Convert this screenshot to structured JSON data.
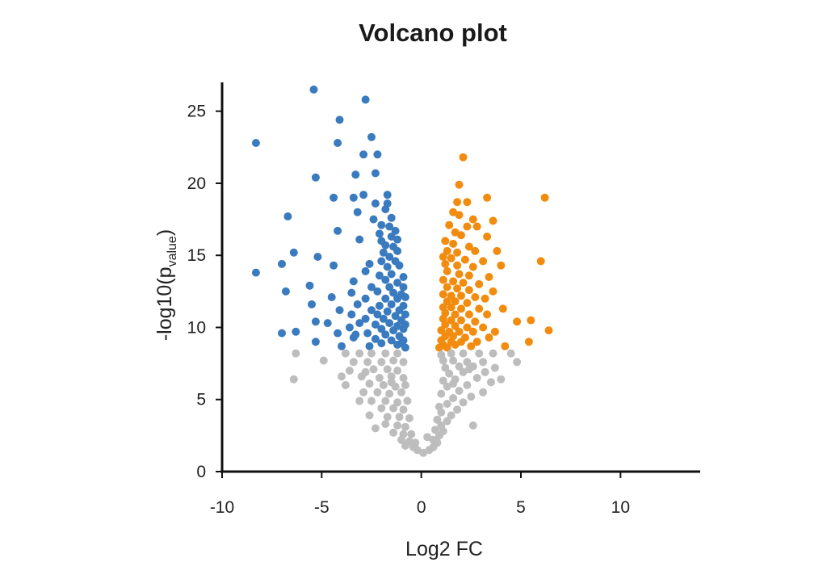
{
  "chart_data": {
    "type": "scatter",
    "title": "Volcano plot",
    "xlabel": "Log2 FC",
    "ylabel_main": "-log10(p",
    "ylabel_sub": "value",
    "ylabel_close": ")",
    "xlim": [
      -10,
      14
    ],
    "ylim": [
      0,
      27
    ],
    "xticks": [
      -10,
      -5,
      0,
      5,
      10
    ],
    "yticks": [
      0,
      5,
      10,
      15,
      20,
      25
    ],
    "grid": false,
    "colors": {
      "down": "#3a7bbf",
      "up": "#f28c0f",
      "ns": "#bdbdbd"
    },
    "series": [
      {
        "key": "down",
        "points": [
          [
            -5.4,
            26.5
          ],
          [
            -2.8,
            25.8
          ],
          [
            -4.1,
            24.4
          ],
          [
            -2.5,
            23.2
          ],
          [
            -8.3,
            22.8
          ],
          [
            -4.2,
            22.8
          ],
          [
            -2.9,
            22.0
          ],
          [
            -2.2,
            22.0
          ],
          [
            -5.3,
            20.4
          ],
          [
            -3.3,
            20.6
          ],
          [
            -2.3,
            20.7
          ],
          [
            -4.4,
            19.0
          ],
          [
            -3.4,
            19.0
          ],
          [
            -2.9,
            19.2
          ],
          [
            -1.7,
            19.2
          ],
          [
            -2.3,
            18.6
          ],
          [
            -1.7,
            18.6
          ],
          [
            -3.2,
            18.0
          ],
          [
            -1.8,
            18.2
          ],
          [
            -6.7,
            17.7
          ],
          [
            -2.4,
            17.5
          ],
          [
            -1.5,
            17.6
          ],
          [
            -2.0,
            17.1
          ],
          [
            -1.6,
            17.0
          ],
          [
            -1.3,
            16.7
          ],
          [
            -4.2,
            16.7
          ],
          [
            -2.1,
            16.5
          ],
          [
            -1.5,
            16.3
          ],
          [
            -3.1,
            16.1
          ],
          [
            -2.0,
            16.0
          ],
          [
            -1.2,
            16.1
          ],
          [
            -1.8,
            15.7
          ],
          [
            -1.4,
            15.6
          ],
          [
            -6.4,
            15.2
          ],
          [
            -1.9,
            15.2
          ],
          [
            -1.2,
            15.3
          ],
          [
            -5.2,
            14.9
          ],
          [
            -1.6,
            14.9
          ],
          [
            -2.0,
            14.6
          ],
          [
            -7.0,
            14.4
          ],
          [
            -1.3,
            14.6
          ],
          [
            -4.4,
            14.3
          ],
          [
            -2.6,
            14.4
          ],
          [
            -1.7,
            14.2
          ],
          [
            -1.1,
            14.3
          ],
          [
            -8.3,
            13.8
          ],
          [
            -2.8,
            13.9
          ],
          [
            -2.1,
            13.6
          ],
          [
            -1.5,
            13.7
          ],
          [
            -0.9,
            13.5
          ],
          [
            -3.4,
            13.2
          ],
          [
            -1.8,
            13.3
          ],
          [
            -1.2,
            13.1
          ],
          [
            -5.6,
            12.9
          ],
          [
            -2.5,
            12.8
          ],
          [
            -1.6,
            12.8
          ],
          [
            -0.9,
            12.8
          ],
          [
            -6.8,
            12.5
          ],
          [
            -3.5,
            12.4
          ],
          [
            -2.2,
            12.5
          ],
          [
            -1.4,
            12.4
          ],
          [
            -1.0,
            12.3
          ],
          [
            -4.5,
            12.1
          ],
          [
            -2.8,
            12.0
          ],
          [
            -1.8,
            12.0
          ],
          [
            -1.2,
            12.0
          ],
          [
            -0.8,
            12.1
          ],
          [
            -5.5,
            11.6
          ],
          [
            -3.2,
            11.6
          ],
          [
            -2.1,
            11.5
          ],
          [
            -1.5,
            11.6
          ],
          [
            -0.9,
            11.5
          ],
          [
            -4.1,
            11.2
          ],
          [
            -2.5,
            11.2
          ],
          [
            -1.7,
            11.1
          ],
          [
            -1.1,
            11.2
          ],
          [
            -3.5,
            10.9
          ],
          [
            -2.2,
            10.9
          ],
          [
            -1.3,
            10.8
          ],
          [
            -0.8,
            10.9
          ],
          [
            -2.8,
            10.6
          ],
          [
            -1.9,
            10.6
          ],
          [
            -1.0,
            10.5
          ],
          [
            -5.3,
            10.4
          ],
          [
            -4.7,
            10.3
          ],
          [
            -3.1,
            10.3
          ],
          [
            -2.3,
            10.2
          ],
          [
            -1.6,
            10.3
          ],
          [
            -1.2,
            10.1
          ],
          [
            -0.8,
            10.2
          ],
          [
            -3.6,
            10.0
          ],
          [
            -2.0,
            9.9
          ],
          [
            -1.4,
            9.8
          ],
          [
            -0.9,
            9.9
          ],
          [
            -7.0,
            9.6
          ],
          [
            -6.3,
            9.7
          ],
          [
            -4.2,
            9.6
          ],
          [
            -2.7,
            9.6
          ],
          [
            -1.8,
            9.5
          ],
          [
            -1.1,
            9.4
          ],
          [
            -3.4,
            9.3
          ],
          [
            -2.3,
            9.2
          ],
          [
            -1.5,
            9.1
          ],
          [
            -0.9,
            9.1
          ],
          [
            -5.3,
            9.0
          ],
          [
            -2.0,
            8.9
          ],
          [
            -1.2,
            8.8
          ],
          [
            -4.0,
            8.7
          ],
          [
            -2.6,
            8.7
          ],
          [
            -0.8,
            8.6
          ],
          [
            -3.3,
            9.5
          ],
          [
            -1.0,
            8.9
          ]
        ]
      },
      {
        "key": "up",
        "points": [
          [
            2.1,
            21.8
          ],
          [
            1.9,
            19.9
          ],
          [
            3.3,
            19.0
          ],
          [
            6.2,
            19.0
          ],
          [
            1.8,
            18.7
          ],
          [
            2.3,
            18.7
          ],
          [
            1.6,
            18.0
          ],
          [
            1.9,
            17.8
          ],
          [
            2.6,
            17.5
          ],
          [
            3.6,
            17.4
          ],
          [
            1.4,
            17.1
          ],
          [
            2.3,
            17.0
          ],
          [
            2.8,
            17.0
          ],
          [
            1.7,
            16.6
          ],
          [
            2.0,
            16.4
          ],
          [
            3.3,
            16.3
          ],
          [
            1.2,
            16.0
          ],
          [
            1.6,
            15.8
          ],
          [
            2.4,
            15.6
          ],
          [
            1.3,
            15.3
          ],
          [
            1.8,
            15.2
          ],
          [
            2.7,
            15.3
          ],
          [
            3.8,
            15.3
          ],
          [
            1.1,
            14.9
          ],
          [
            1.5,
            14.8
          ],
          [
            2.2,
            14.7
          ],
          [
            3.1,
            14.6
          ],
          [
            6.0,
            14.6
          ],
          [
            1.2,
            14.4
          ],
          [
            1.8,
            14.3
          ],
          [
            2.6,
            14.2
          ],
          [
            4.0,
            14.3
          ],
          [
            1.3,
            13.9
          ],
          [
            1.9,
            13.7
          ],
          [
            2.4,
            13.6
          ],
          [
            3.4,
            13.5
          ],
          [
            1.1,
            13.3
          ],
          [
            1.6,
            13.2
          ],
          [
            2.1,
            13.1
          ],
          [
            2.9,
            13.0
          ],
          [
            1.3,
            12.8
          ],
          [
            1.8,
            12.7
          ],
          [
            2.4,
            12.6
          ],
          [
            3.6,
            12.5
          ],
          [
            1.1,
            12.3
          ],
          [
            1.5,
            12.2
          ],
          [
            2.0,
            12.2
          ],
          [
            2.7,
            12.1
          ],
          [
            3.2,
            12.0
          ],
          [
            1.3,
            11.8
          ],
          [
            1.7,
            11.8
          ],
          [
            2.3,
            11.7
          ],
          [
            1.1,
            11.4
          ],
          [
            1.5,
            11.4
          ],
          [
            2.0,
            11.3
          ],
          [
            2.9,
            11.3
          ],
          [
            4.1,
            11.3
          ],
          [
            1.2,
            11.0
          ],
          [
            1.7,
            10.9
          ],
          [
            2.4,
            10.9
          ],
          [
            3.3,
            10.9
          ],
          [
            1.1,
            10.6
          ],
          [
            1.5,
            10.5
          ],
          [
            2.0,
            10.5
          ],
          [
            2.7,
            10.4
          ],
          [
            4.8,
            10.4
          ],
          [
            5.5,
            10.5
          ],
          [
            1.2,
            10.2
          ],
          [
            1.7,
            10.1
          ],
          [
            2.3,
            10.0
          ],
          [
            3.1,
            10.0
          ],
          [
            1.0,
            9.8
          ],
          [
            1.4,
            9.7
          ],
          [
            1.9,
            9.7
          ],
          [
            2.6,
            9.7
          ],
          [
            3.7,
            9.7
          ],
          [
            6.4,
            9.8
          ],
          [
            1.2,
            9.4
          ],
          [
            1.6,
            9.4
          ],
          [
            2.2,
            9.3
          ],
          [
            3.4,
            9.3
          ],
          [
            1.0,
            9.1
          ],
          [
            1.5,
            9.0
          ],
          [
            2.0,
            9.0
          ],
          [
            2.8,
            9.0
          ],
          [
            5.4,
            9.0
          ],
          [
            1.1,
            8.8
          ],
          [
            1.7,
            8.8
          ],
          [
            4.2,
            8.7
          ],
          [
            0.9,
            8.6
          ],
          [
            1.3,
            8.6
          ],
          [
            2.5,
            8.7
          ]
        ]
      },
      {
        "key": "ns",
        "points": [
          [
            -6.3,
            8.2
          ],
          [
            -6.4,
            6.4
          ],
          [
            -4.9,
            7.7
          ],
          [
            -3.8,
            8.2
          ],
          [
            -3.1,
            8.2
          ],
          [
            -2.5,
            8.2
          ],
          [
            -1.8,
            8.2
          ],
          [
            -1.2,
            8.2
          ],
          [
            -3.4,
            7.6
          ],
          [
            -2.7,
            7.6
          ],
          [
            -2.0,
            7.6
          ],
          [
            -1.4,
            7.7
          ],
          [
            -0.9,
            7.6
          ],
          [
            -3.6,
            7.0
          ],
          [
            -2.4,
            7.1
          ],
          [
            -1.7,
            7.1
          ],
          [
            -1.2,
            7.0
          ],
          [
            -4.0,
            6.6
          ],
          [
            -3.0,
            6.6
          ],
          [
            -2.1,
            6.5
          ],
          [
            -1.5,
            6.6
          ],
          [
            -0.9,
            6.5
          ],
          [
            -3.8,
            6.0
          ],
          [
            -2.6,
            6.1
          ],
          [
            -1.9,
            6.0
          ],
          [
            -1.3,
            5.9
          ],
          [
            -0.8,
            6.0
          ],
          [
            -2.9,
            5.5
          ],
          [
            -2.2,
            5.5
          ],
          [
            -1.6,
            5.4
          ],
          [
            -1.0,
            5.5
          ],
          [
            -3.1,
            4.9
          ],
          [
            -2.5,
            4.9
          ],
          [
            -1.8,
            4.9
          ],
          [
            -1.2,
            4.8
          ],
          [
            -0.7,
            4.9
          ],
          [
            -2.0,
            4.4
          ],
          [
            -1.4,
            4.4
          ],
          [
            -0.9,
            4.3
          ],
          [
            -2.6,
            3.9
          ],
          [
            -1.7,
            3.8
          ],
          [
            -1.1,
            3.8
          ],
          [
            -0.6,
            3.7
          ],
          [
            -1.8,
            3.3
          ],
          [
            -1.2,
            3.2
          ],
          [
            -0.8,
            3.1
          ],
          [
            -1.4,
            2.7
          ],
          [
            -0.9,
            2.6
          ],
          [
            -0.5,
            2.6
          ],
          [
            -1.0,
            2.2
          ],
          [
            -0.6,
            2.1
          ],
          [
            -0.8,
            1.8
          ],
          [
            -0.4,
            1.7
          ],
          [
            -0.2,
            1.5
          ],
          [
            0.1,
            1.3
          ],
          [
            0.4,
            1.5
          ],
          [
            0.6,
            1.7
          ],
          [
            0.8,
            2.0
          ],
          [
            0.6,
            2.2
          ],
          [
            0.9,
            2.5
          ],
          [
            1.1,
            2.8
          ],
          [
            0.7,
            2.9
          ],
          [
            1.0,
            3.2
          ],
          [
            1.3,
            3.5
          ],
          [
            0.8,
            3.6
          ],
          [
            1.5,
            3.9
          ],
          [
            1.0,
            4.1
          ],
          [
            1.8,
            4.3
          ],
          [
            0.9,
            4.5
          ],
          [
            1.3,
            4.7
          ],
          [
            2.1,
            4.8
          ],
          [
            1.6,
            5.1
          ],
          [
            2.5,
            5.2
          ],
          [
            1.0,
            5.4
          ],
          [
            1.9,
            5.6
          ],
          [
            3.1,
            5.5
          ],
          [
            1.3,
            5.9
          ],
          [
            2.3,
            6.0
          ],
          [
            3.5,
            6.2
          ],
          [
            1.1,
            6.3
          ],
          [
            1.7,
            6.4
          ],
          [
            2.8,
            6.5
          ],
          [
            4.0,
            6.4
          ],
          [
            1.4,
            6.8
          ],
          [
            2.1,
            6.9
          ],
          [
            3.2,
            6.9
          ],
          [
            1.2,
            7.2
          ],
          [
            1.9,
            7.3
          ],
          [
            2.6,
            7.3
          ],
          [
            3.7,
            7.2
          ],
          [
            1.1,
            7.7
          ],
          [
            1.6,
            7.7
          ],
          [
            2.3,
            7.6
          ],
          [
            3.1,
            7.6
          ],
          [
            4.8,
            7.6
          ],
          [
            1.0,
            8.1
          ],
          [
            1.5,
            8.2
          ],
          [
            2.1,
            8.2
          ],
          [
            2.9,
            8.2
          ],
          [
            3.6,
            8.2
          ],
          [
            4.5,
            8.2
          ],
          [
            -2.3,
            3.0
          ],
          [
            2.6,
            3.2
          ],
          [
            -0.3,
            2.0
          ],
          [
            0.3,
            2.4
          ],
          [
            -1.5,
            6.2
          ],
          [
            1.6,
            6.1
          ],
          [
            -2.8,
            6.9
          ],
          [
            2.4,
            7.1
          ]
        ]
      }
    ]
  }
}
